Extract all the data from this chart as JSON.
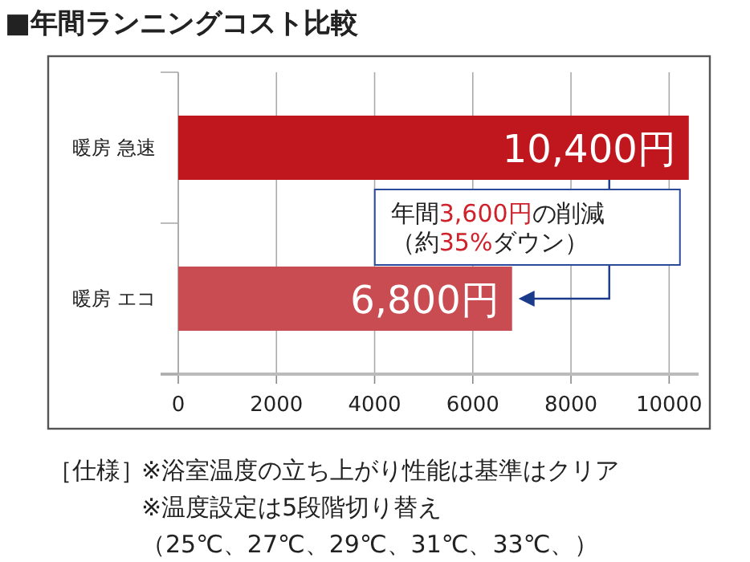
{
  "chart_data": {
    "type": "bar",
    "orientation": "horizontal",
    "title": "■年間ランニングコスト比較",
    "categories": [
      "暖房 急速",
      "暖房 エコ"
    ],
    "values": [
      10400,
      6800
    ],
    "colors": [
      "#c0171f",
      "#c84c52"
    ],
    "value_labels": [
      "10,400円",
      "6,800円"
    ],
    "xlim": [
      0,
      10600
    ],
    "xticks": [
      0,
      2000,
      4000,
      6000,
      8000,
      10000
    ],
    "grid": "x",
    "annotations": [
      {
        "text": "年間3,600円の削減",
        "x": 6800,
        "y": "暖房 エコ"
      },
      {
        "text": "（約35%ダウン）",
        "x": 6800,
        "y": "暖房 エコ"
      },
      "［仕様］",
      "※浴室温度の立ち上がり性能は基準はクリア",
      "※温度設定は5段階切り替え",
      "（25℃、27℃、29℃、31℃、33℃、）"
    ]
  }
}
